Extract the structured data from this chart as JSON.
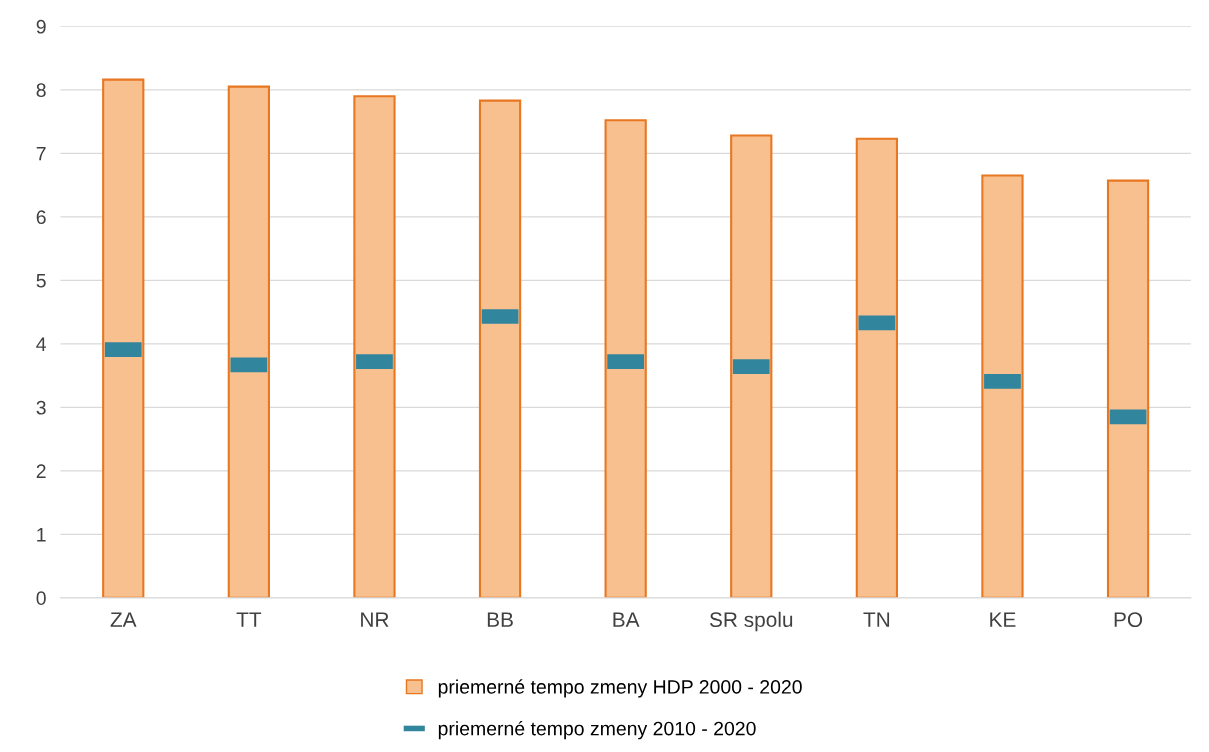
{
  "chart_data": {
    "type": "bar",
    "categories": [
      "ZA",
      "TT",
      "NR",
      "BB",
      "BA",
      "SR spolu",
      "TN",
      "KE",
      "PO"
    ],
    "series": [
      {
        "name": "priemerné tempo zmeny HDP 2000 - 2020",
        "color": "#f8bf8f",
        "values": [
          8.16,
          8.05,
          7.9,
          7.83,
          7.52,
          7.28,
          7.23,
          6.65,
          6.57
        ]
      },
      {
        "name": "priemerné tempo zmeny 2010 - 2020",
        "type": "scatter",
        "color": "#31859c",
        "values": [
          3.91,
          3.67,
          3.72,
          4.43,
          3.72,
          3.64,
          4.33,
          3.41,
          2.85
        ]
      }
    ],
    "ylim": [
      0,
      9
    ],
    "yticks": [
      0,
      1,
      2,
      3,
      4,
      5,
      6,
      7,
      8,
      9
    ],
    "grid": "y",
    "legend": "bottom"
  }
}
